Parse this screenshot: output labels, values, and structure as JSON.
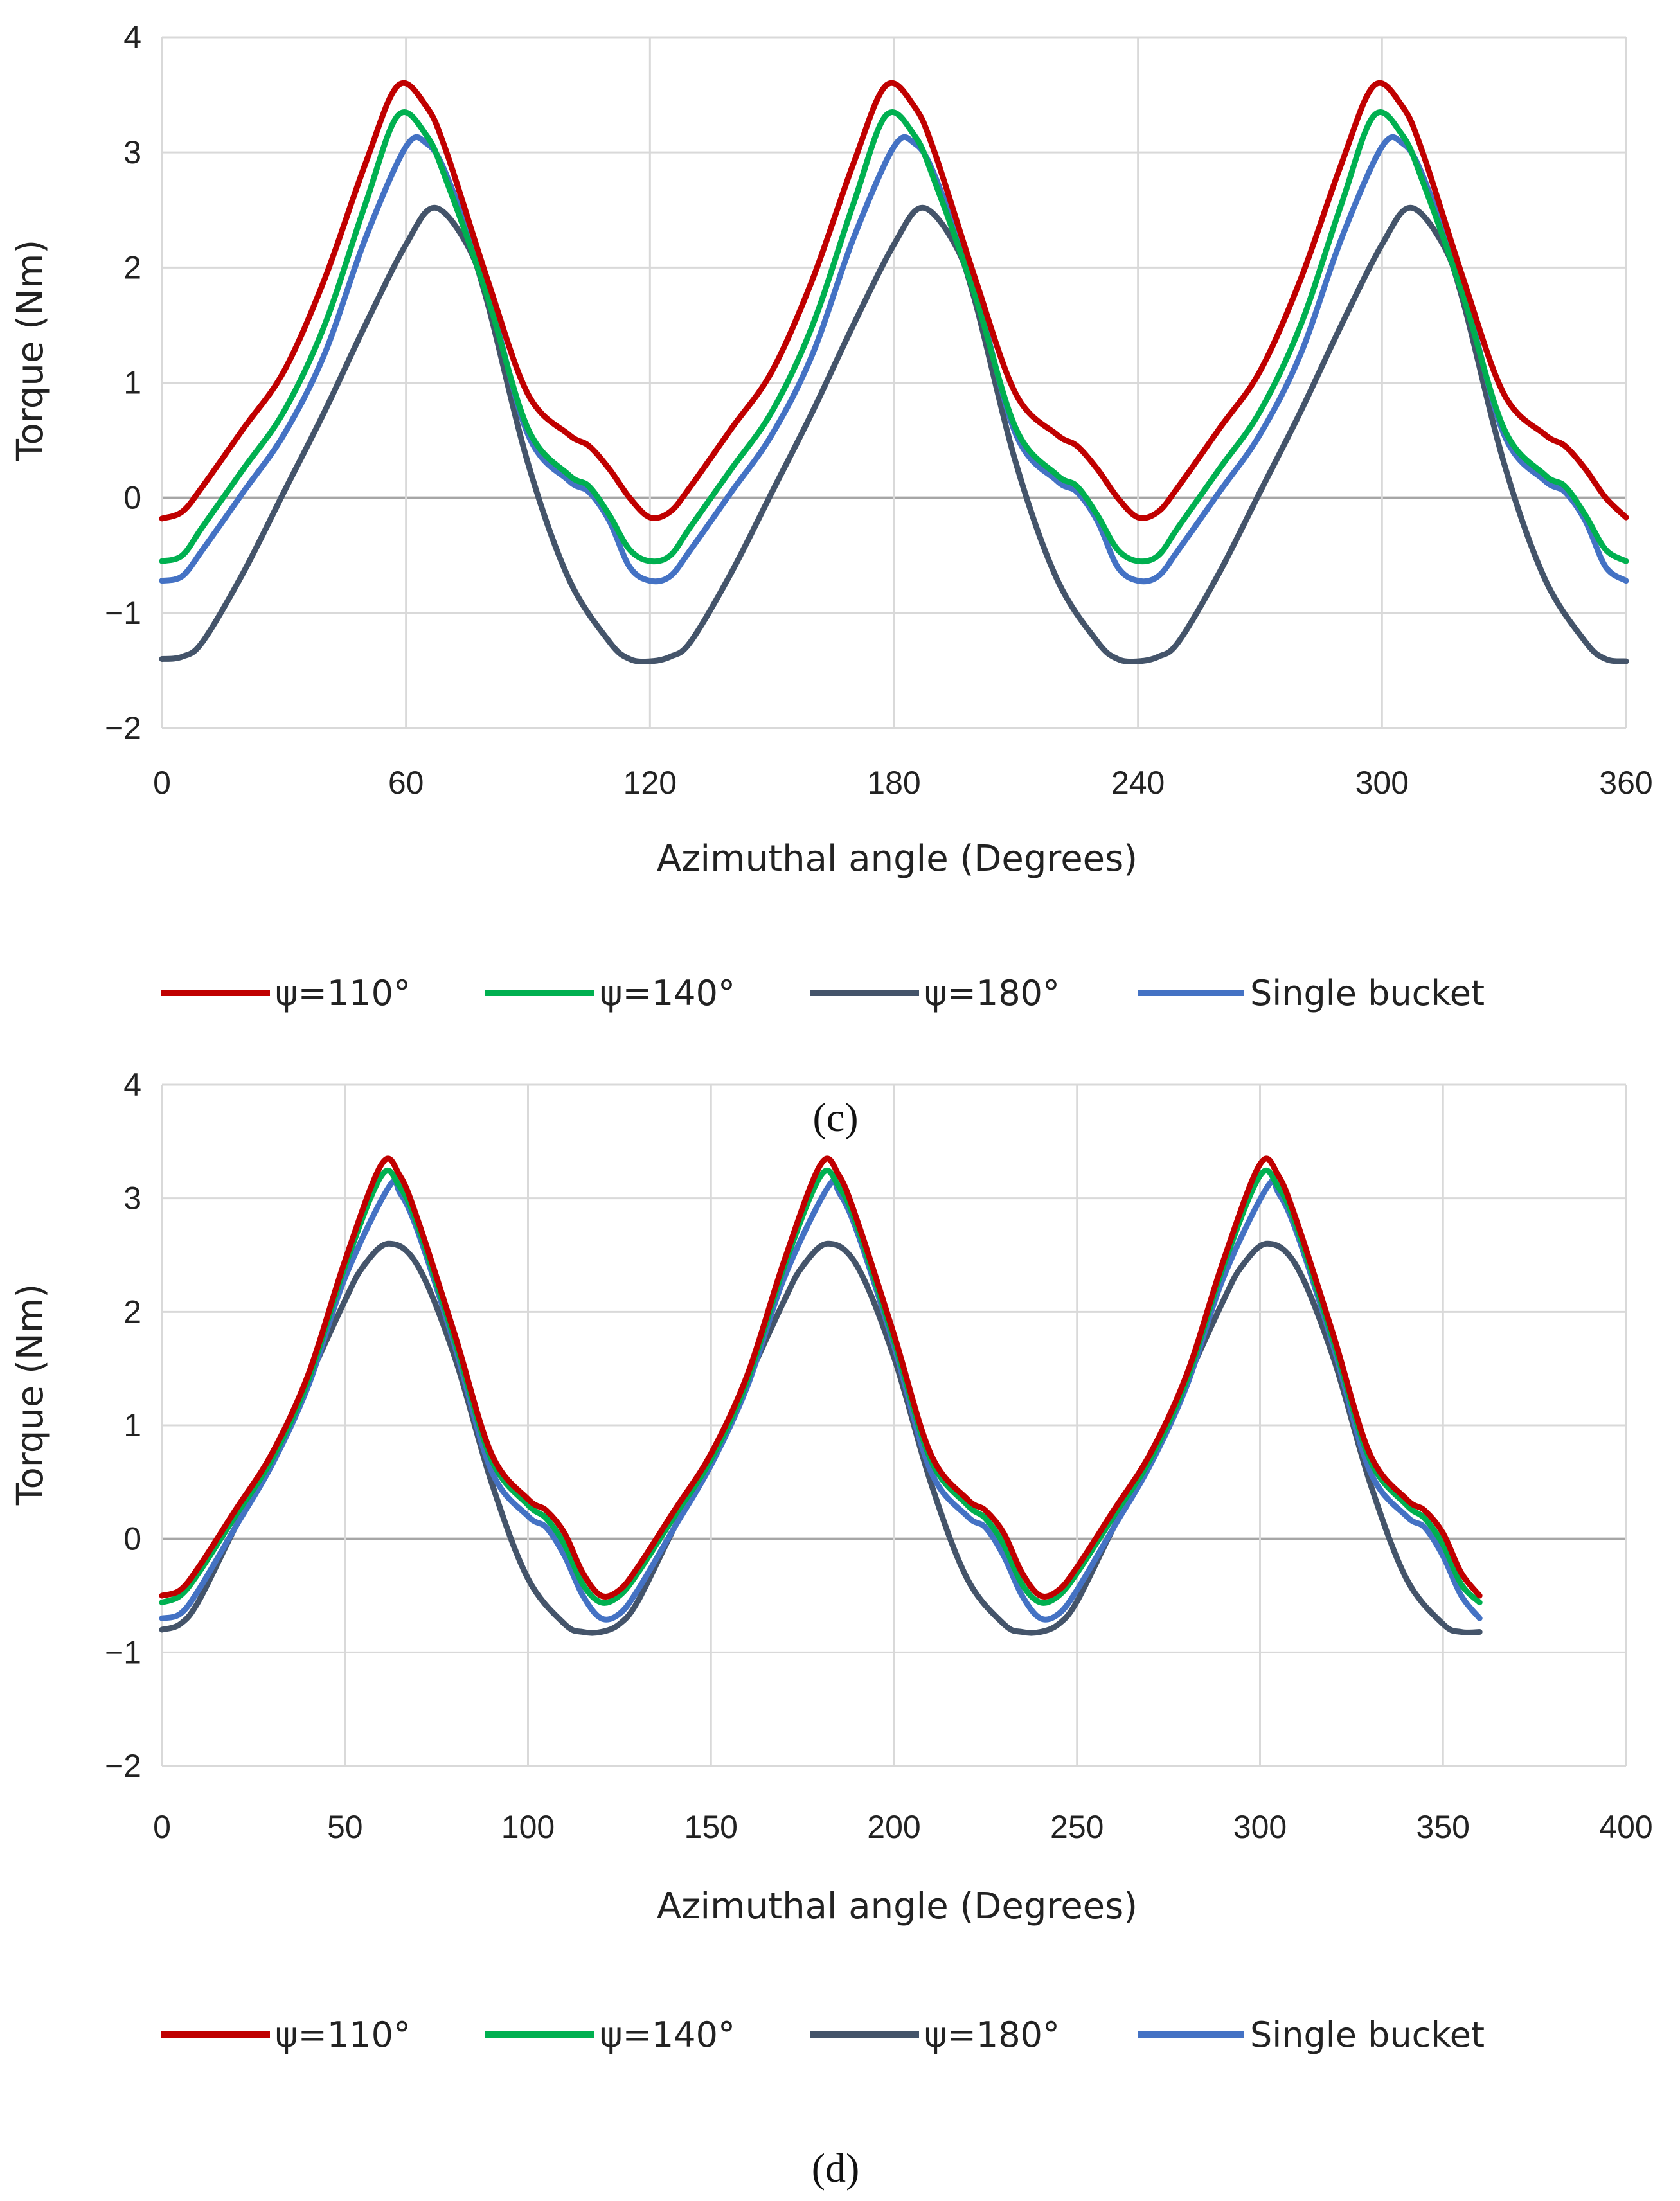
{
  "chart_data": [
    {
      "type": "line",
      "panel_label": "(c)",
      "title": "",
      "xlabel": "Azimuthal angle (Degrees)",
      "ylabel": "Torque (Nm)",
      "xlim": [
        0,
        360
      ],
      "ylim": [
        -2,
        4
      ],
      "xticks": [
        0,
        60,
        120,
        180,
        240,
        300,
        360
      ],
      "yticks": [
        -2,
        -1,
        0,
        1,
        2,
        3,
        4
      ],
      "xtick_labels": [
        "0",
        "60",
        "120",
        "180",
        "240",
        "300",
        "360"
      ],
      "ytick_labels": [
        "−2",
        "−1",
        "0",
        "1",
        "2",
        "3",
        "4"
      ],
      "grid": true,
      "legend_position": "bottom",
      "series": [
        {
          "name": "ψ=110°",
          "color": "#c00000",
          "x": [
            0,
            5,
            10,
            20,
            30,
            40,
            50,
            58,
            65,
            70,
            80,
            90,
            100,
            105,
            110,
            115,
            120
          ],
          "y": [
            -0.18,
            -0.12,
            0.1,
            0.6,
            1.1,
            1.9,
            2.9,
            3.58,
            3.4,
            3.0,
            1.9,
            0.9,
            0.55,
            0.45,
            0.25,
            0.0,
            -0.17
          ]
        },
        {
          "name": "ψ=140°",
          "color": "#00b050",
          "x": [
            0,
            5,
            10,
            20,
            30,
            40,
            50,
            58,
            65,
            70,
            80,
            90,
            100,
            105,
            110,
            115,
            120
          ],
          "y": [
            -0.55,
            -0.5,
            -0.25,
            0.25,
            0.75,
            1.5,
            2.55,
            3.32,
            3.15,
            2.75,
            1.75,
            0.6,
            0.2,
            0.1,
            -0.15,
            -0.45,
            -0.55
          ]
        },
        {
          "name": "ψ=180°",
          "color": "#44546a",
          "x": [
            0,
            5,
            10,
            20,
            30,
            40,
            50,
            60,
            67,
            75,
            80,
            90,
            100,
            110,
            115,
            120
          ],
          "y": [
            -1.4,
            -1.38,
            -1.25,
            -0.65,
            0.05,
            0.75,
            1.5,
            2.2,
            2.52,
            2.2,
            1.7,
            0.3,
            -0.7,
            -1.25,
            -1.4,
            -1.42
          ]
        },
        {
          "name": "Single bucket",
          "color": "#4472c4",
          "x": [
            0,
            5,
            10,
            20,
            30,
            40,
            50,
            60,
            65,
            70,
            80,
            90,
            100,
            105,
            110,
            115,
            120
          ],
          "y": [
            -0.72,
            -0.68,
            -0.45,
            0.05,
            0.55,
            1.25,
            2.25,
            3.05,
            3.08,
            2.8,
            1.8,
            0.55,
            0.15,
            0.05,
            -0.2,
            -0.6,
            -0.72
          ]
        }
      ]
    },
    {
      "type": "line",
      "panel_label": "(d)",
      "title": "",
      "xlabel": "Azimuthal angle (Degrees)",
      "ylabel": "Torque (Nm)",
      "xlim": [
        0,
        400
      ],
      "ylim": [
        -2,
        4
      ],
      "xticks": [
        0,
        50,
        100,
        150,
        200,
        250,
        300,
        350,
        400
      ],
      "yticks": [
        -2,
        -1,
        0,
        1,
        2,
        3,
        4
      ],
      "xtick_labels": [
        "0",
        "50",
        "100",
        "150",
        "200",
        "250",
        "300",
        "350",
        "400"
      ],
      "ytick_labels": [
        "−2",
        "−1",
        "0",
        "1",
        "2",
        "3",
        "4"
      ],
      "grid": true,
      "legend_position": "bottom",
      "series": [
        {
          "name": "ψ=110°",
          "color": "#c00000",
          "x": [
            0,
            5,
            10,
            20,
            30,
            40,
            50,
            60,
            65,
            70,
            80,
            90,
            100,
            105,
            110,
            115,
            120
          ],
          "y": [
            -0.5,
            -0.45,
            -0.25,
            0.25,
            0.75,
            1.45,
            2.45,
            3.3,
            3.2,
            2.8,
            1.8,
            0.75,
            0.35,
            0.25,
            0.05,
            -0.3,
            -0.5
          ]
        },
        {
          "name": "ψ=140°",
          "color": "#00b050",
          "x": [
            0,
            5,
            10,
            20,
            30,
            40,
            50,
            60,
            65,
            70,
            80,
            90,
            100,
            105,
            110,
            115,
            120
          ],
          "y": [
            -0.56,
            -0.5,
            -0.3,
            0.2,
            0.7,
            1.4,
            2.4,
            3.2,
            3.1,
            2.75,
            1.75,
            0.7,
            0.3,
            0.18,
            -0.05,
            -0.4,
            -0.56
          ]
        },
        {
          "name": "ψ=180°",
          "color": "#44546a",
          "x": [
            0,
            5,
            10,
            20,
            30,
            40,
            50,
            55,
            62,
            70,
            80,
            90,
            100,
            110,
            115,
            120
          ],
          "y": [
            -0.8,
            -0.75,
            -0.55,
            0.1,
            0.7,
            1.4,
            2.1,
            2.4,
            2.6,
            2.4,
            1.6,
            0.5,
            -0.35,
            -0.75,
            -0.82,
            -0.82
          ]
        },
        {
          "name": "Single bucket",
          "color": "#4472c4",
          "x": [
            0,
            5,
            10,
            20,
            30,
            40,
            50,
            62,
            65,
            70,
            80,
            90,
            100,
            105,
            110,
            115,
            120
          ],
          "y": [
            -0.7,
            -0.66,
            -0.45,
            0.1,
            0.65,
            1.35,
            2.3,
            3.1,
            3.05,
            2.7,
            1.7,
            0.6,
            0.2,
            0.1,
            -0.15,
            -0.5,
            -0.7
          ]
        }
      ]
    }
  ]
}
